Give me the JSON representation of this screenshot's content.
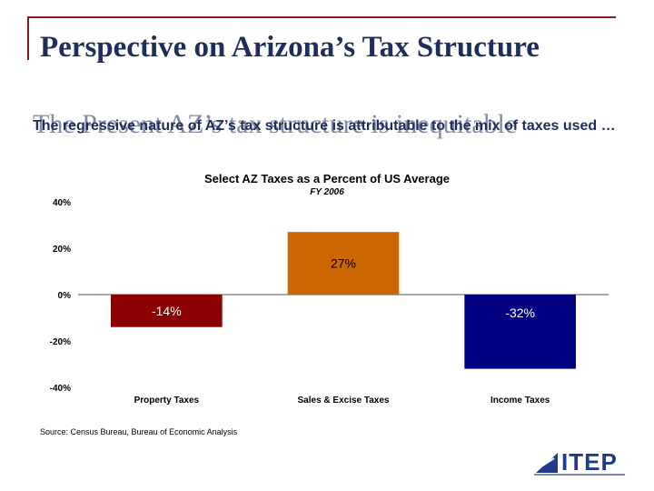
{
  "slide": {
    "title": "Perspective on Arizona’s Tax Structure",
    "ghost_text": "The Present AZ’s tax structure is inequitable",
    "subtitle": "The regressive nature of AZ’s tax structure is attributable to the mix of taxes used …",
    "source": "Source: Census Bureau, Bureau of Economic Analysis",
    "logo_text": "ITEP"
  },
  "chart_data": {
    "type": "bar",
    "title": "Select AZ Taxes as a Percent of US Average",
    "subtitle": "FY 2006",
    "categories": [
      "Property Taxes",
      "Sales & Excise Taxes",
      "Income Taxes"
    ],
    "values": [
      -14,
      27,
      -32
    ],
    "data_labels": [
      "-14%",
      "27%",
      "-32%"
    ],
    "colors": [
      "#8b0000",
      "#cc6600",
      "#000080"
    ],
    "ylim": [
      -40,
      40
    ],
    "yticks": [
      40,
      20,
      0,
      -20,
      -40
    ],
    "ytick_labels": [
      "40%",
      "20%",
      "0%",
      "-20%",
      "-40%"
    ],
    "xlabel": "",
    "ylabel": "",
    "grid": false
  },
  "colors": {
    "title": "#1f2d5c",
    "accent": "#8b1a1a",
    "logo": "#1f3b8c"
  }
}
